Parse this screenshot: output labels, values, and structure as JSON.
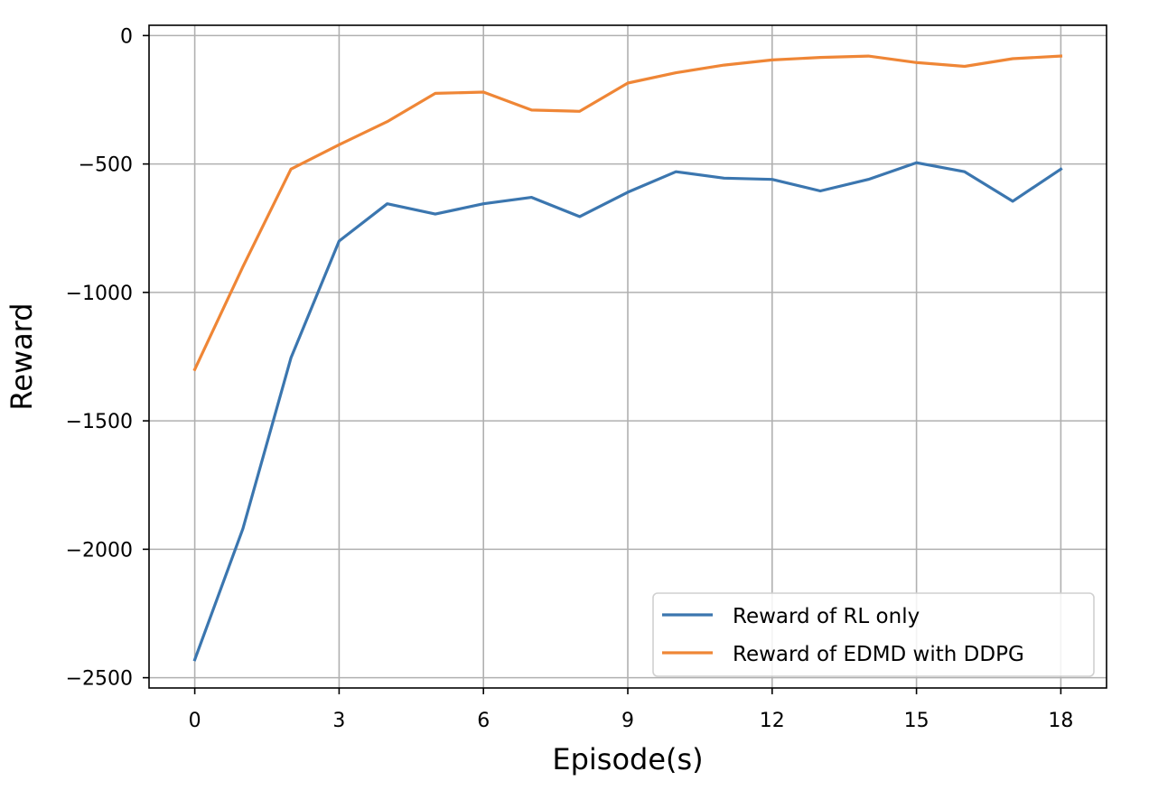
{
  "chart_data": {
    "type": "line",
    "title": "",
    "xlabel": "Episode(s)",
    "ylabel": "Reward",
    "xlim": [
      -0.95,
      18.95
    ],
    "ylim": [
      -2540,
      40
    ],
    "xticks": [
      0,
      3,
      6,
      9,
      12,
      15,
      18
    ],
    "yticks": [
      0,
      -500,
      -1000,
      -1500,
      -2000,
      -2500
    ],
    "ytick_labels": [
      "0",
      "−500",
      "−1000",
      "−1500",
      "−2000",
      "−2500"
    ],
    "xtick_labels": [
      "0",
      "3",
      "6",
      "9",
      "12",
      "15",
      "18"
    ],
    "grid": true,
    "legend_position": "lower-right",
    "x": [
      0,
      1,
      2,
      3,
      4,
      5,
      6,
      7,
      8,
      9,
      10,
      11,
      12,
      13,
      14,
      15,
      16,
      17,
      18
    ],
    "series": [
      {
        "name": "Reward of RL only",
        "color": "#3b76af",
        "values": [
          -2430,
          -1920,
          -1255,
          -800,
          -655,
          -695,
          -655,
          -630,
          -705,
          -610,
          -530,
          -555,
          -560,
          -605,
          -560,
          -495,
          -530,
          -645,
          -520
        ]
      },
      {
        "name": "Reward of EDMD with DDPG",
        "color": "#ef8636",
        "values": [
          -1300,
          -900,
          -520,
          -425,
          -335,
          -225,
          -220,
          -290,
          -295,
          -185,
          -145,
          -115,
          -95,
          -85,
          -80,
          -105,
          -120,
          -90,
          -80
        ]
      }
    ]
  }
}
